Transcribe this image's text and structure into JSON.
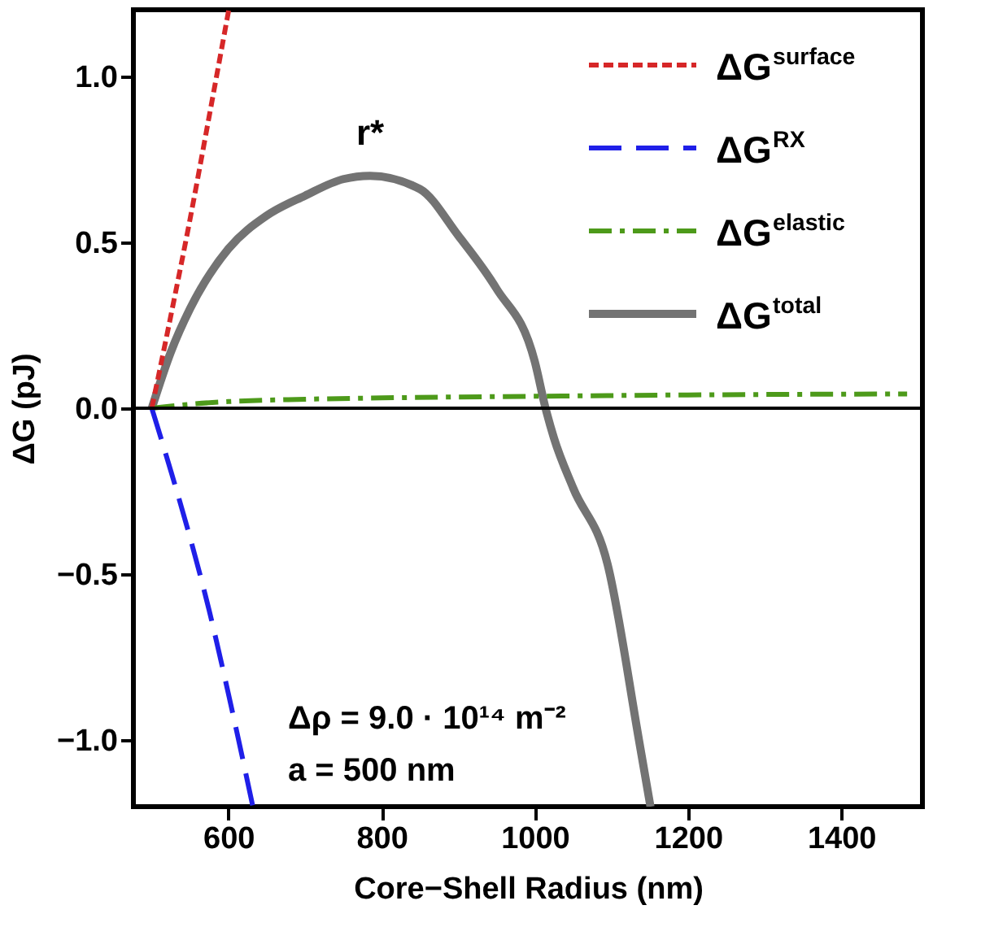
{
  "chart_data": {
    "type": "line",
    "xlabel": "Core−Shell Radius (nm)",
    "ylabel": "ΔG (pJ)",
    "xlim": [
      476,
      1506
    ],
    "ylim": [
      -1.2,
      1.2
    ],
    "xticks": [
      600,
      800,
      1000,
      1200,
      1400
    ],
    "yticks": [
      {
        "value": -1.0,
        "label": "−1.0"
      },
      {
        "value": -0.5,
        "label": "−0.5"
      },
      {
        "value": 0,
        "label": "0.0"
      },
      {
        "value": 0.5,
        "label": "0.5"
      },
      {
        "value": 1.0,
        "label": "1.0"
      }
    ],
    "grid": false,
    "legend": "top right",
    "marker": "none",
    "series": [
      {
        "name": "ΔG$^{surface}$",
        "color": "#d62728",
        "line_style": "dashed",
        "x": [
          500,
          525,
          550,
          575,
          600.5
        ],
        "values": [
          0,
          0.28,
          0.57,
          0.88,
          1.2
        ]
      },
      {
        "name": "ΔG$^{RX}$",
        "color": "#1f1fe8",
        "line_style": "dashed",
        "x": [
          500,
          525,
          550,
          575,
          600,
          632
        ],
        "values": [
          0,
          -0.19,
          -0.39,
          -0.61,
          -0.86,
          -1.2
        ]
      },
      {
        "name": "ΔG$^{elastic}$",
        "color": "#4d9a1a",
        "line_style": "dashdot",
        "x": [
          500,
          550,
          600,
          700,
          800,
          1000,
          1200,
          1486
        ],
        "values": [
          0,
          0.012,
          0.02,
          0.027,
          0.031,
          0.036,
          0.04,
          0.043
        ]
      },
      {
        "name": "ΔG$^{total}$",
        "color": "#737373",
        "line_style": "solid",
        "x": [
          500,
          525,
          550,
          600,
          650,
          700,
          750,
          785,
          850,
          900,
          950,
          1000,
          1014,
          1025,
          1050,
          1095,
          1136,
          1151
        ],
        "values": [
          0,
          0.17,
          0.3,
          0.48,
          0.58,
          0.64,
          0.69,
          0.7,
          0.66,
          0.52,
          0.36,
          0.14,
          0,
          -0.09,
          -0.24,
          -0.47,
          -1.0,
          -1.2
        ]
      }
    ],
    "ref_lines": [
      {
        "axis": "y",
        "value": 0,
        "color": "#000000"
      }
    ],
    "annotations": [
      {
        "text": "r*",
        "x": 785,
        "y": 0.7
      },
      "Δρ = 9.0 · 10¹⁴ m⁻²",
      "a = 500 nm"
    ]
  }
}
